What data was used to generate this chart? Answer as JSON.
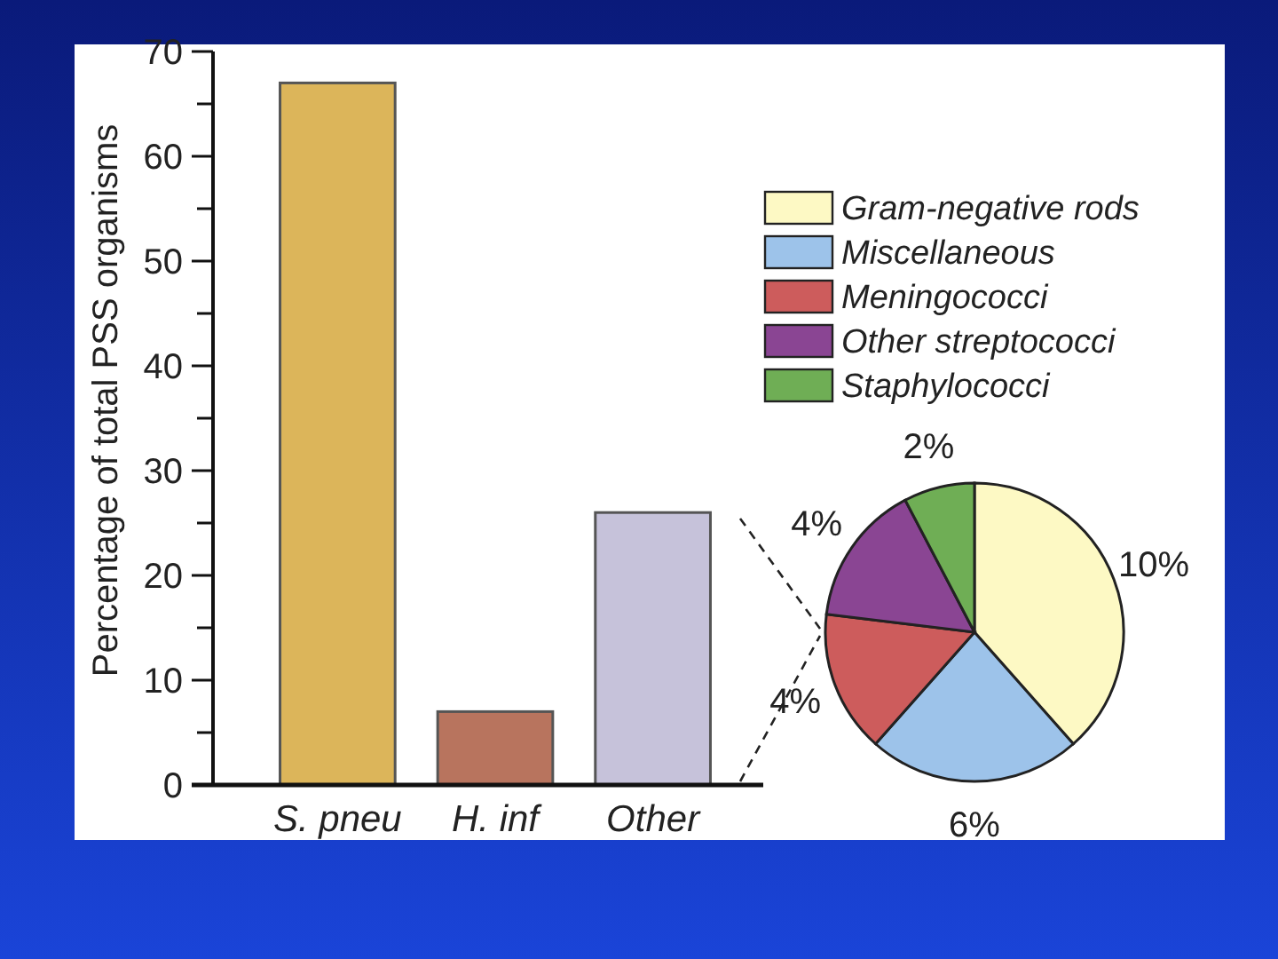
{
  "chart_data": [
    {
      "type": "bar",
      "ylabel": "Percentage of total PSS organisms",
      "categories": [
        "S. pneu",
        "H. inf",
        "Other"
      ],
      "values": [
        67,
        7,
        26
      ],
      "colors": [
        "#dcb55a",
        "#b8745e",
        "#c6c2da"
      ],
      "ylim": [
        0,
        70
      ],
      "yticks": [
        0,
        {
          "value": 5,
          "label": null
        },
        10,
        {
          "value": 15,
          "label": null
        },
        20,
        {
          "value": 25,
          "label": null
        },
        30,
        {
          "value": 35,
          "label": null
        },
        40,
        {
          "value": 45,
          "label": null
        },
        50,
        {
          "value": 55,
          "label": null
        },
        60,
        {
          "value": 65,
          "label": null
        },
        70
      ],
      "grid": false
    },
    {
      "type": "pie",
      "categories": [
        "Gram-negative rods",
        "Miscellaneous",
        "Meningococci",
        "Other streptococci",
        "Staphylococci"
      ],
      "values": [
        10,
        6,
        4,
        4,
        2
      ],
      "colors": [
        "#fdf9c4",
        "#9dc3ea",
        "#cd5c5c",
        "#8a4593",
        "#6fae55"
      ],
      "value_labels": [
        "10%",
        "6%",
        "4%",
        "4%",
        "2%"
      ],
      "legend": "top"
    }
  ]
}
